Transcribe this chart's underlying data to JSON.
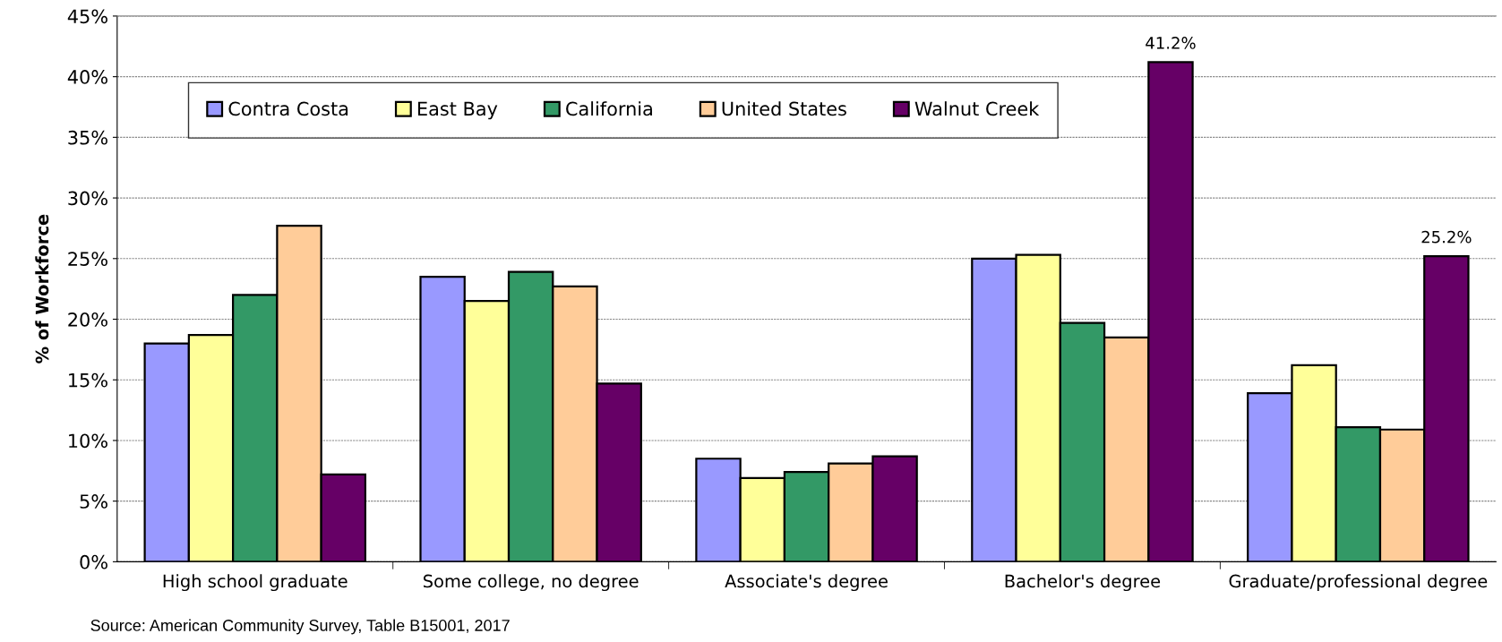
{
  "chart_data": {
    "type": "bar",
    "ylabel": "% of Workforce",
    "categories": [
      "High school graduate",
      "Some college, no degree",
      "Associate's degree",
      "Bachelor's degree",
      "Graduate/professional degree"
    ],
    "series": [
      {
        "name": "Contra Costa",
        "color": "#9999ff",
        "values": [
          18.0,
          23.5,
          8.5,
          25.0,
          13.9
        ]
      },
      {
        "name": "East Bay",
        "color": "#ffff99",
        "values": [
          18.7,
          21.5,
          6.9,
          25.3,
          16.2
        ]
      },
      {
        "name": "California",
        "color": "#339966",
        "values": [
          22.0,
          23.9,
          7.4,
          19.7,
          11.1
        ]
      },
      {
        "name": "United States",
        "color": "#ffcc99",
        "values": [
          27.7,
          22.7,
          8.1,
          18.5,
          10.9
        ]
      },
      {
        "name": "Walnut Creek",
        "color": "#660066",
        "values": [
          7.2,
          14.7,
          8.7,
          41.2,
          25.2
        ],
        "value_labels": [
          null,
          null,
          null,
          "41.2%",
          "25.2%"
        ]
      }
    ],
    "ylim": [
      0,
      45
    ],
    "yticks": [
      {
        "value": 0,
        "label": "0%"
      },
      {
        "value": 5,
        "label": "5%"
      },
      {
        "value": 10,
        "label": "10%"
      },
      {
        "value": 15,
        "label": "15%"
      },
      {
        "value": 20,
        "label": "20%"
      },
      {
        "value": 25,
        "label": "25%"
      },
      {
        "value": 30,
        "label": "30%"
      },
      {
        "value": 35,
        "label": "35%"
      },
      {
        "value": 40,
        "label": "40%"
      },
      {
        "value": 45,
        "label": "45%"
      }
    ],
    "grid": "y",
    "legend": "top",
    "annotations": [
      "Source: American Community Survey, Table B15001, 2017"
    ]
  }
}
